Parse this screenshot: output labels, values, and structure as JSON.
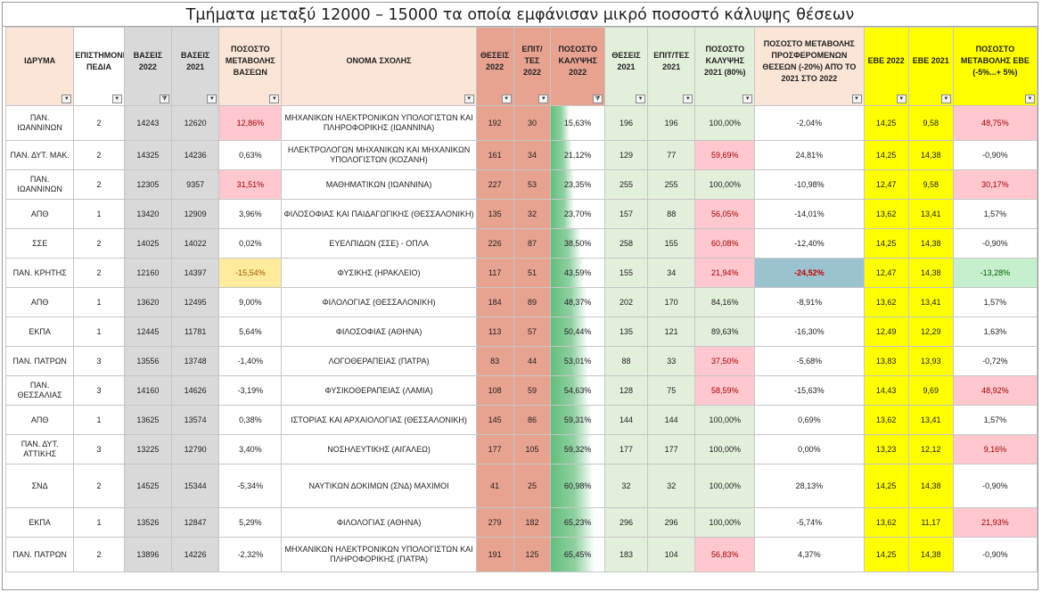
{
  "title": "Τμήματα μεταξύ 12000 – 15000 τα οποία εμφάνισαν μικρό ποσοστό κάλυψης θέσεων",
  "colors": {
    "grey": "#d9d9d9",
    "peach": "#fbe5d6",
    "salmon": "#e8a290",
    "green": "#e2efda",
    "yellow": "#ffff00",
    "pink": "#ffc7ce",
    "orange": "#ffeb9c",
    "blue": "#9bc2cf",
    "light_green": "#c6efce"
  },
  "columns": [
    {
      "key": "idryma",
      "label": "ΙΔΡΥΜΑ"
    },
    {
      "key": "pedio",
      "label": "ΕΠΙΣΤΗΜΟΝΙΚΑ ΠΕΔΙΑ"
    },
    {
      "key": "b22",
      "label": "ΒΑΣΕΙΣ 2022"
    },
    {
      "key": "b21",
      "label": "ΒΑΣΕΙΣ 2021"
    },
    {
      "key": "pm_b",
      "label": "ΠΟΣΟΣΤΟ ΜΕΤΑΒΟΛΗΣ ΒΑΣΕΩΝ"
    },
    {
      "key": "onoma",
      "label": "ΟΝΟΜΑ ΣΧΟΛΗΣ"
    },
    {
      "key": "th22",
      "label": "ΘΕΣΕΙΣ 2022"
    },
    {
      "key": "ep22",
      "label": "ΕΠΙΤ/ΤΕΣ 2022"
    },
    {
      "key": "pk22",
      "label": "ΠΟΣΟΣΤΟ ΚΑΛΥΨΗΣ 2022"
    },
    {
      "key": "th21",
      "label": "ΘΕΣΕΙΣ 2021"
    },
    {
      "key": "ep21",
      "label": "ΕΠΙΤ/ΤΕΣ 2021"
    },
    {
      "key": "pk21",
      "label": "ΠΟΣΟΣΤΟ ΚΑΛΥΨΗΣ 2021 (80%)"
    },
    {
      "key": "pm_th",
      "label": "ΠΟΣΟΣΤΟ ΜΕΤΑΒΟΛΗΣ ΠΡΟΣΦΕΡΟΜΕΝΩΝ ΘΕΣΕΩΝ (-20%) ΑΠΌ ΤΟ 2021 ΣΤΟ 2022"
    },
    {
      "key": "ebe22",
      "label": "ΕΒΕ 2022"
    },
    {
      "key": "ebe21",
      "label": "ΕΒΕ 2021"
    },
    {
      "key": "pm_ebe",
      "label": "ΠΟΣΟΣΤΟ ΜΕΤΑΒΟΛΗΣ ΕΒΕ (-5%...+ 5%)"
    }
  ],
  "filter_icons": [
    "dropdown-arrow",
    "sort-filter"
  ],
  "rows": [
    {
      "idryma": "ΠΑΝ. ΙΩΑΝΝΙΝΩΝ",
      "pedio": "2",
      "b22": "14243",
      "b21": "12620",
      "pm_b": "12,86%",
      "onoma": "ΜΗΧΑΝΙΚΩΝ ΗΛΕΚΤΡΟΝΙΚΩΝ ΥΠΟΛΟΓΙΣΤΩΝ ΚΑΙ ΠΛΗΡΟΦΟΡΙΚΗΣ (ΙΩΑΝΝΙΝΑ)",
      "th22": "192",
      "ep22": "30",
      "pk22": "15,63%",
      "th21": "196",
      "ep21": "196",
      "pk21": "100,00%",
      "pm_th": "-2,04%",
      "ebe22": "14,25",
      "ebe21": "9,58",
      "pm_ebe": "48,75%"
    },
    {
      "idryma": "ΠΑΝ. ΔΥΤ. ΜΑΚ.",
      "pedio": "2",
      "b22": "14325",
      "b21": "14236",
      "pm_b": "0,63%",
      "onoma": "ΗΛΕΚΤΡΟΛΟΓΩΝ ΜΗΧΑΝΙΚΩΝ ΚΑΙ ΜΗΧΑΝΙΚΩΝ ΥΠΟΛΟΓΙΣΤΩΝ (ΚΟΖΑΝΗ)",
      "th22": "161",
      "ep22": "34",
      "pk22": "21,12%",
      "th21": "129",
      "ep21": "77",
      "pk21": "59,69%",
      "pm_th": "24,81%",
      "ebe22": "14,25",
      "ebe21": "14,38",
      "pm_ebe": "-0,90%"
    },
    {
      "idryma": "ΠΑΝ. ΙΩΑΝΝΙΝΩΝ",
      "pedio": "2",
      "b22": "12305",
      "b21": "9357",
      "pm_b": "31,51%",
      "onoma": "ΜΑΘΗΜΑΤΙΚΩΝ (ΙΩΑΝΝΙΝΑ)",
      "th22": "227",
      "ep22": "53",
      "pk22": "23,35%",
      "th21": "255",
      "ep21": "255",
      "pk21": "100,00%",
      "pm_th": "-10,98%",
      "ebe22": "12,47",
      "ebe21": "9,58",
      "pm_ebe": "30,17%"
    },
    {
      "idryma": "ΑΠΘ",
      "pedio": "1",
      "b22": "13420",
      "b21": "12909",
      "pm_b": "3,96%",
      "onoma": "ΦΙΛΟΣΟΦΙΑΣ ΚΑΙ ΠΑΙΔΑΓΩΓΙΚΗΣ (ΘΕΣΣΑΛΟΝΙΚΗ)",
      "th22": "135",
      "ep22": "32",
      "pk22": "23,70%",
      "th21": "157",
      "ep21": "88",
      "pk21": "56,05%",
      "pm_th": "-14,01%",
      "ebe22": "13,62",
      "ebe21": "13,41",
      "pm_ebe": "1,57%"
    },
    {
      "idryma": "ΣΣΕ",
      "pedio": "2",
      "b22": "14025",
      "b21": "14022",
      "pm_b": "0,02%",
      "onoma": "ΕΥΕΛΠΙΔΩΝ (ΣΣΕ) - ΟΠΛΑ",
      "th22": "226",
      "ep22": "87",
      "pk22": "38,50%",
      "th21": "258",
      "ep21": "155",
      "pk21": "60,08%",
      "pm_th": "-12,40%",
      "ebe22": "14,25",
      "ebe21": "14,38",
      "pm_ebe": "-0,90%"
    },
    {
      "idryma": "ΠΑΝ. ΚΡΗΤΗΣ",
      "pedio": "2",
      "b22": "12160",
      "b21": "14397",
      "pm_b": "-15,54%",
      "onoma": "ΦΥΣΙΚΗΣ (ΗΡΑΚΛΕΙΟ)",
      "th22": "117",
      "ep22": "51",
      "pk22": "43,59%",
      "th21": "155",
      "ep21": "34",
      "pk21": "21,94%",
      "pm_th": "-24,52%",
      "ebe22": "12,47",
      "ebe21": "14,38",
      "pm_ebe": "-13,28%"
    },
    {
      "idryma": "ΑΠΘ",
      "pedio": "1",
      "b22": "13620",
      "b21": "12495",
      "pm_b": "9,00%",
      "onoma": "ΦΙΛΟΛΟΓΙΑΣ (ΘΕΣΣΑΛΟΝΙΚΗ)",
      "th22": "184",
      "ep22": "89",
      "pk22": "48,37%",
      "th21": "202",
      "ep21": "170",
      "pk21": "84,16%",
      "pm_th": "-8,91%",
      "ebe22": "13,62",
      "ebe21": "13,41",
      "pm_ebe": "1,57%"
    },
    {
      "idryma": "ΕΚΠΑ",
      "pedio": "1",
      "b22": "12445",
      "b21": "11781",
      "pm_b": "5,64%",
      "onoma": "ΦΙΛΟΣΟΦΙΑΣ (ΑΘΗΝΑ)",
      "th22": "113",
      "ep22": "57",
      "pk22": "50,44%",
      "th21": "135",
      "ep21": "121",
      "pk21": "89,63%",
      "pm_th": "-16,30%",
      "ebe22": "12,49",
      "ebe21": "12,29",
      "pm_ebe": "1,63%"
    },
    {
      "idryma": "ΠΑΝ. ΠΑΤΡΩΝ",
      "pedio": "3",
      "b22": "13556",
      "b21": "13748",
      "pm_b": "-1,40%",
      "onoma": "ΛΟΓΟΘΕΡΑΠΕΙΑΣ (ΠΑΤΡΑ)",
      "th22": "83",
      "ep22": "44",
      "pk22": "53,01%",
      "th21": "88",
      "ep21": "33",
      "pk21": "37,50%",
      "pm_th": "-5,68%",
      "ebe22": "13,83",
      "ebe21": "13,93",
      "pm_ebe": "-0,72%"
    },
    {
      "idryma": "ΠΑΝ. ΘΕΣΣΑΛΙΑΣ",
      "pedio": "3",
      "b22": "14160",
      "b21": "14626",
      "pm_b": "-3,19%",
      "onoma": "ΦΥΣΙΚΟΘΕΡΑΠΕΙΑΣ (ΛΑΜΙΑ)",
      "th22": "108",
      "ep22": "59",
      "pk22": "54,63%",
      "th21": "128",
      "ep21": "75",
      "pk21": "58,59%",
      "pm_th": "-15,63%",
      "ebe22": "14,43",
      "ebe21": "9,69",
      "pm_ebe": "48,92%"
    },
    {
      "idryma": "ΑΠΘ",
      "pedio": "1",
      "b22": "13625",
      "b21": "13574",
      "pm_b": "0,38%",
      "onoma": "ΙΣΤΟΡΙΑΣ ΚΑΙ ΑΡΧΑΙΟΛΟΓΙΑΣ (ΘΕΣΣΑΛΟΝΙΚΗ)",
      "th22": "145",
      "ep22": "86",
      "pk22": "59,31%",
      "th21": "144",
      "ep21": "144",
      "pk21": "100,00%",
      "pm_th": "0,69%",
      "ebe22": "13,62",
      "ebe21": "13,41",
      "pm_ebe": "1,57%"
    },
    {
      "idryma": "ΠΑΝ. ΔΥΤ. ΑΤΤΙΚΗΣ",
      "pedio": "3",
      "b22": "13225",
      "b21": "12790",
      "pm_b": "3,40%",
      "onoma": "ΝΟΣΗΛΕΥΤΙΚΗΣ (ΑΙΓΑΛΕΩ)",
      "th22": "177",
      "ep22": "105",
      "pk22": "59,32%",
      "th21": "177",
      "ep21": "177",
      "pk21": "100,00%",
      "pm_th": "0,00%",
      "ebe22": "13,23",
      "ebe21": "12,12",
      "pm_ebe": "9,16%"
    },
    {
      "idryma": "ΣΝΔ",
      "pedio": "2",
      "b22": "14525",
      "b21": "15344",
      "pm_b": "-5,34%",
      "onoma": "ΝΑΥΤΙΚΩΝ ΔΟΚΙΜΩΝ (ΣΝΔ) ΜΑΧΙΜΟΙ",
      "th22": "41",
      "ep22": "25",
      "pk22": "60,98%",
      "th21": "32",
      "ep21": "32",
      "pk21": "100,00%",
      "pm_th": "28,13%",
      "ebe22": "14,25",
      "ebe21": "14,38",
      "pm_ebe": "-0,90%"
    },
    {
      "idryma": "ΕΚΠΑ",
      "pedio": "1",
      "b22": "13526",
      "b21": "12847",
      "pm_b": "5,29%",
      "onoma": "ΦΙΛΟΛΟΓΙΑΣ (ΑΘΗΝΑ)",
      "th22": "279",
      "ep22": "182",
      "pk22": "65,23%",
      "th21": "296",
      "ep21": "296",
      "pk21": "100,00%",
      "pm_th": "-5,74%",
      "ebe22": "13,62",
      "ebe21": "11,17",
      "pm_ebe": "21,93%"
    },
    {
      "idryma": "ΠΑΝ. ΠΑΤΡΩΝ",
      "pedio": "2",
      "b22": "13896",
      "b21": "14226",
      "pm_b": "-2,32%",
      "onoma": "ΜΗΧΑΝΙΚΩΝ ΗΛΕΚΤΡΟΝΙΚΩΝ ΥΠΟΛΟΓΙΣΤΩΝ ΚΑΙ ΠΛΗΡΟΦΟΡΙΚΗΣ (ΠΑΤΡΑ)",
      "th22": "191",
      "ep22": "125",
      "pk22": "65,45%",
      "th21": "183",
      "ep21": "104",
      "pk21": "56,83%",
      "pm_th": "4,37%",
      "ebe22": "14,25",
      "ebe21": "14,38",
      "pm_ebe": "-0,90%"
    }
  ]
}
